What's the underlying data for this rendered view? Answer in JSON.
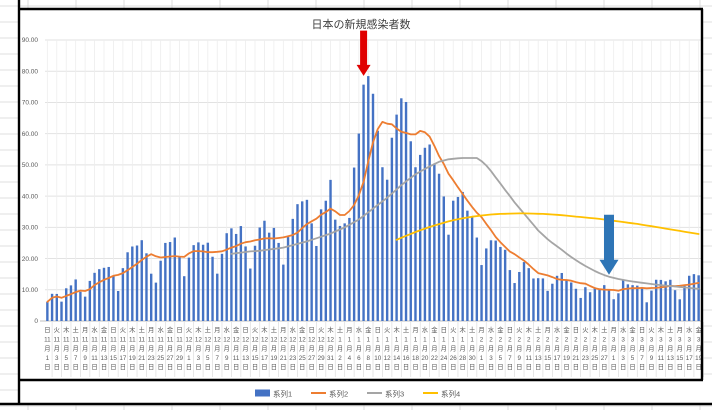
{
  "chart": {
    "title": "日本の新規感染者数",
    "legend": [
      {
        "label": "系列1",
        "marker": "bar",
        "color": "#4472c4"
      },
      {
        "label": "系列2",
        "marker": "line",
        "color": "#ed7d31"
      },
      {
        "label": "系列3",
        "marker": "line",
        "color": "#a5a5a5"
      },
      {
        "label": "系列4",
        "marker": "line",
        "color": "#ffc000"
      }
    ],
    "y_axis": {
      "labels": [
        "90.00",
        "80.00",
        "70.00",
        "60.00",
        "50.00",
        "40.00",
        "30.00",
        "20.00",
        "10.00",
        "0"
      ],
      "max": 9000,
      "step": 1000
    },
    "x_axis": {
      "tick_every_days": 2,
      "ticks": [
        [
          "日",
          "11",
          "1"
        ],
        [
          "火",
          "11",
          "3"
        ],
        [
          "木",
          "11",
          "5"
        ],
        [
          "土",
          "11",
          "7"
        ],
        [
          "月",
          "11",
          "9"
        ],
        [
          "水",
          "11",
          "11"
        ],
        [
          "金",
          "11",
          "13"
        ],
        [
          "日",
          "11",
          "15"
        ],
        [
          "火",
          "11",
          "17"
        ],
        [
          "木",
          "11",
          "19"
        ],
        [
          "土",
          "11",
          "21"
        ],
        [
          "月",
          "11",
          "23"
        ],
        [
          "水",
          "11",
          "25"
        ],
        [
          "金",
          "11",
          "27"
        ],
        [
          "日",
          "11",
          "29"
        ],
        [
          "火",
          "12",
          "1"
        ],
        [
          "木",
          "12",
          "3"
        ],
        [
          "土",
          "12",
          "5"
        ],
        [
          "月",
          "12",
          "7"
        ],
        [
          "水",
          "12",
          "9"
        ],
        [
          "金",
          "12",
          "11"
        ],
        [
          "日",
          "12",
          "13"
        ],
        [
          "火",
          "12",
          "15"
        ],
        [
          "木",
          "12",
          "17"
        ],
        [
          "土",
          "12",
          "19"
        ],
        [
          "月",
          "12",
          "21"
        ],
        [
          "水",
          "12",
          "23"
        ],
        [
          "金",
          "12",
          "25"
        ],
        [
          "日",
          "12",
          "27"
        ],
        [
          "火",
          "12",
          "29"
        ],
        [
          "木",
          "12",
          "31"
        ],
        [
          "土",
          "1",
          "2"
        ],
        [
          "月",
          "1",
          "4"
        ],
        [
          "水",
          "1",
          "6"
        ],
        [
          "金",
          "1",
          "8"
        ],
        [
          "日",
          "1",
          "10"
        ],
        [
          "火",
          "1",
          "12"
        ],
        [
          "木",
          "1",
          "14"
        ],
        [
          "土",
          "1",
          "16"
        ],
        [
          "月",
          "1",
          "18"
        ],
        [
          "水",
          "1",
          "20"
        ],
        [
          "金",
          "1",
          "22"
        ],
        [
          "日",
          "1",
          "24"
        ],
        [
          "火",
          "1",
          "26"
        ],
        [
          "木",
          "1",
          "28"
        ],
        [
          "土",
          "1",
          "30"
        ],
        [
          "月",
          "2",
          "1"
        ],
        [
          "水",
          "2",
          "3"
        ],
        [
          "金",
          "2",
          "5"
        ],
        [
          "日",
          "2",
          "7"
        ],
        [
          "火",
          "2",
          "9"
        ],
        [
          "木",
          "2",
          "11"
        ],
        [
          "土",
          "2",
          "13"
        ],
        [
          "月",
          "2",
          "15"
        ],
        [
          "水",
          "2",
          "17"
        ],
        [
          "金",
          "2",
          "19"
        ],
        [
          "日",
          "2",
          "21"
        ],
        [
          "火",
          "2",
          "23"
        ],
        [
          "木",
          "2",
          "25"
        ],
        [
          "土",
          "2",
          "27"
        ],
        [
          "月",
          "3",
          "1"
        ],
        [
          "水",
          "3",
          "3"
        ],
        [
          "金",
          "3",
          "5"
        ],
        [
          "日",
          "3",
          "7"
        ],
        [
          "火",
          "3",
          "9"
        ],
        [
          "木",
          "3",
          "11"
        ],
        [
          "土",
          "3",
          "13"
        ],
        [
          "月",
          "3",
          "15"
        ],
        [
          "水",
          "3",
          "17"
        ],
        [
          "金",
          "3",
          "19"
        ]
      ]
    }
  },
  "chart_data": {
    "type": "bar",
    "combo": "daily bars with three line series",
    "title": "日本の新規感染者数",
    "x_range": "daily, 11月1日 to 3月19日 (139 days)",
    "ylim": [
      0,
      9000
    ],
    "grid": "horizontal every 1000, vertical every 2 days",
    "legend_position": "bottom",
    "series": [
      {
        "name": "系列1",
        "type": "bar",
        "color": "#4472c4",
        "start": 0,
        "values": [
          614,
          871,
          867,
          620,
          1048,
          1141,
          1331,
          936,
          780,
          1284,
          1543,
          1660,
          1704,
          1731,
          1441,
          961,
          1693,
          2201,
          2386,
          2418,
          2588,
          2168,
          1515,
          1229,
          1930,
          2501,
          2529,
          2674,
          2066,
          1435,
          2030,
          2430,
          2518,
          2442,
          2508,
          2058,
          1516,
          2152,
          2812,
          2968,
          2788,
          3041,
          2388,
          1680,
          2410,
          2994,
          3211,
          2829,
          2982,
          2501,
          1806,
          2688,
          3271,
          3742,
          3832,
          3881,
          3127,
          2403,
          3576,
          3852,
          4520,
          3246,
          3044,
          3127,
          3302,
          4915,
          6004,
          7570,
          7844,
          7278,
          6093,
          4925,
          4525,
          5870,
          6610,
          7133,
          7014,
          5756,
          4925,
          5320,
          5548,
          5653,
          5045,
          4717,
          3989,
          2764,
          3853,
          3973,
          4133,
          3534,
          3344,
          2673,
          1792,
          2324,
          2585,
          2576,
          2372,
          2281,
          1631,
          1216,
          1570,
          1887,
          1693,
          1362,
          1371,
          1364,
          965,
          1194,
          1448,
          1538,
          1301,
          1234,
          1032,
          739,
          1083,
          922,
          1076,
          1034,
          1149,
          999,
          697,
          888,
          1316,
          1174,
          1148,
          1133,
          1065,
          599,
          973,
          1321,
          1316,
          1271,
          1320,
          988,
          695,
          1133,
          1449,
          1501,
          1463
        ]
      },
      {
        "name": "系列2",
        "type": "line",
        "color": "#ed7d31",
        "start": 0,
        "values": [
          614,
          743,
          784,
          743,
          804,
          860,
          927,
          973,
          960,
          1020,
          1152,
          1239,
          1320,
          1377,
          1449,
          1475,
          1533,
          1627,
          1731,
          1833,
          1955,
          2059,
          2138,
          2072,
          2033,
          2050,
          2066,
          2078,
          2063,
          2052,
          2166,
          2238,
          2240,
          2228,
          2204,
          2203,
          2215,
          2232,
          2287,
          2351,
          2400,
          2476,
          2524,
          2547,
          2584,
          2610,
          2645,
          2650,
          2642,
          2658,
          2676,
          2716,
          2755,
          2831,
          2975,
          3103,
          3192,
          3278,
          3405,
          3488,
          3599,
          3515,
          3395,
          3395,
          3524,
          3715,
          4023,
          4458,
          5115,
          5720,
          6144,
          6376,
          6320,
          6301,
          6164,
          6062,
          6024,
          5976,
          5976,
          6090,
          6044,
          5907,
          5609,
          5281,
          5028,
          4719,
          4510,
          4285,
          4068,
          3852,
          3656,
          3468,
          3329,
          3110,
          2912,
          2690,
          2524,
          2372,
          2223,
          2141,
          2033,
          1933,
          1807,
          1663,
          1533,
          1495,
          1459,
          1405,
          1342,
          1320,
          1312,
          1292,
          1245,
          1212,
          1196,
          1121,
          1055,
          1017,
          1005,
          1000,
          994,
          966,
          1023,
          1037,
          1053,
          1051,
          1060,
          1046,
          1058,
          1059,
          1079,
          1097,
          1124,
          1113,
          1126,
          1149,
          1167,
          1194,
          1221
        ]
      },
      {
        "name": "系列3",
        "type": "line",
        "color": "#a5a5a5",
        "start": 39,
        "values": [
          2150,
          2170,
          2190,
          2210,
          2230,
          2240,
          2250,
          2270,
          2290,
          2310,
          2330,
          2350,
          2390,
          2430,
          2470,
          2510,
          2550,
          2600,
          2650,
          2700,
          2750,
          2800,
          2865,
          2930,
          3000,
          3080,
          3165,
          3250,
          3365,
          3480,
          3600,
          3715,
          3830,
          3950,
          4080,
          4215,
          4350,
          4470,
          4585,
          4700,
          4785,
          4870,
          4950,
          5025,
          5100,
          5140,
          5180,
          5195,
          5210,
          5220,
          5220,
          5220,
          5220,
          5120,
          4980,
          4800,
          4600,
          4400,
          4200,
          4000,
          3800,
          3620,
          3440,
          3260,
          3080,
          2900,
          2760,
          2620,
          2500,
          2390,
          2280,
          2160,
          2050,
          1950,
          1850,
          1760,
          1680,
          1600,
          1530,
          1470,
          1420,
          1380,
          1345,
          1315,
          1290,
          1265,
          1245,
          1225,
          1205,
          1185,
          1165,
          1150,
          1135,
          1120,
          1105,
          1090,
          1075,
          1060,
          1045,
          1030
        ]
      },
      {
        "name": "系列4",
        "type": "line",
        "color": "#ffc000",
        "start": 74,
        "values": [
          2600,
          2665,
          2730,
          2790,
          2850,
          2905,
          2960,
          3010,
          3060,
          3105,
          3150,
          3190,
          3230,
          3260,
          3290,
          3315,
          3340,
          3360,
          3380,
          3395,
          3410,
          3420,
          3430,
          3435,
          3440,
          3443,
          3445,
          3445,
          3443,
          3440,
          3435,
          3430,
          3420,
          3410,
          3400,
          3390,
          3375,
          3360,
          3345,
          3330,
          3315,
          3300,
          3285,
          3270,
          3250,
          3230,
          3210,
          3190,
          3170,
          3150,
          3130,
          3110,
          3085,
          3060,
          3035,
          3010,
          2985,
          2960,
          2935,
          2910,
          2885,
          2860,
          2835,
          2810,
          2785
        ]
      }
    ]
  },
  "annotations": [
    {
      "name": "red-arrow",
      "shape": "arrow-down",
      "color": "#e00000",
      "day": 67,
      "value_from": 9300,
      "value_to": 7850,
      "shaft_w": 7,
      "head_w": 14,
      "head_h": 11
    },
    {
      "name": "blue-arrow",
      "shape": "arrow-down",
      "color": "#2e75b6",
      "day": 119,
      "value_from": 3400,
      "value_to": 1480,
      "shaft_w": 10,
      "head_w": 19,
      "head_h": 15
    }
  ]
}
